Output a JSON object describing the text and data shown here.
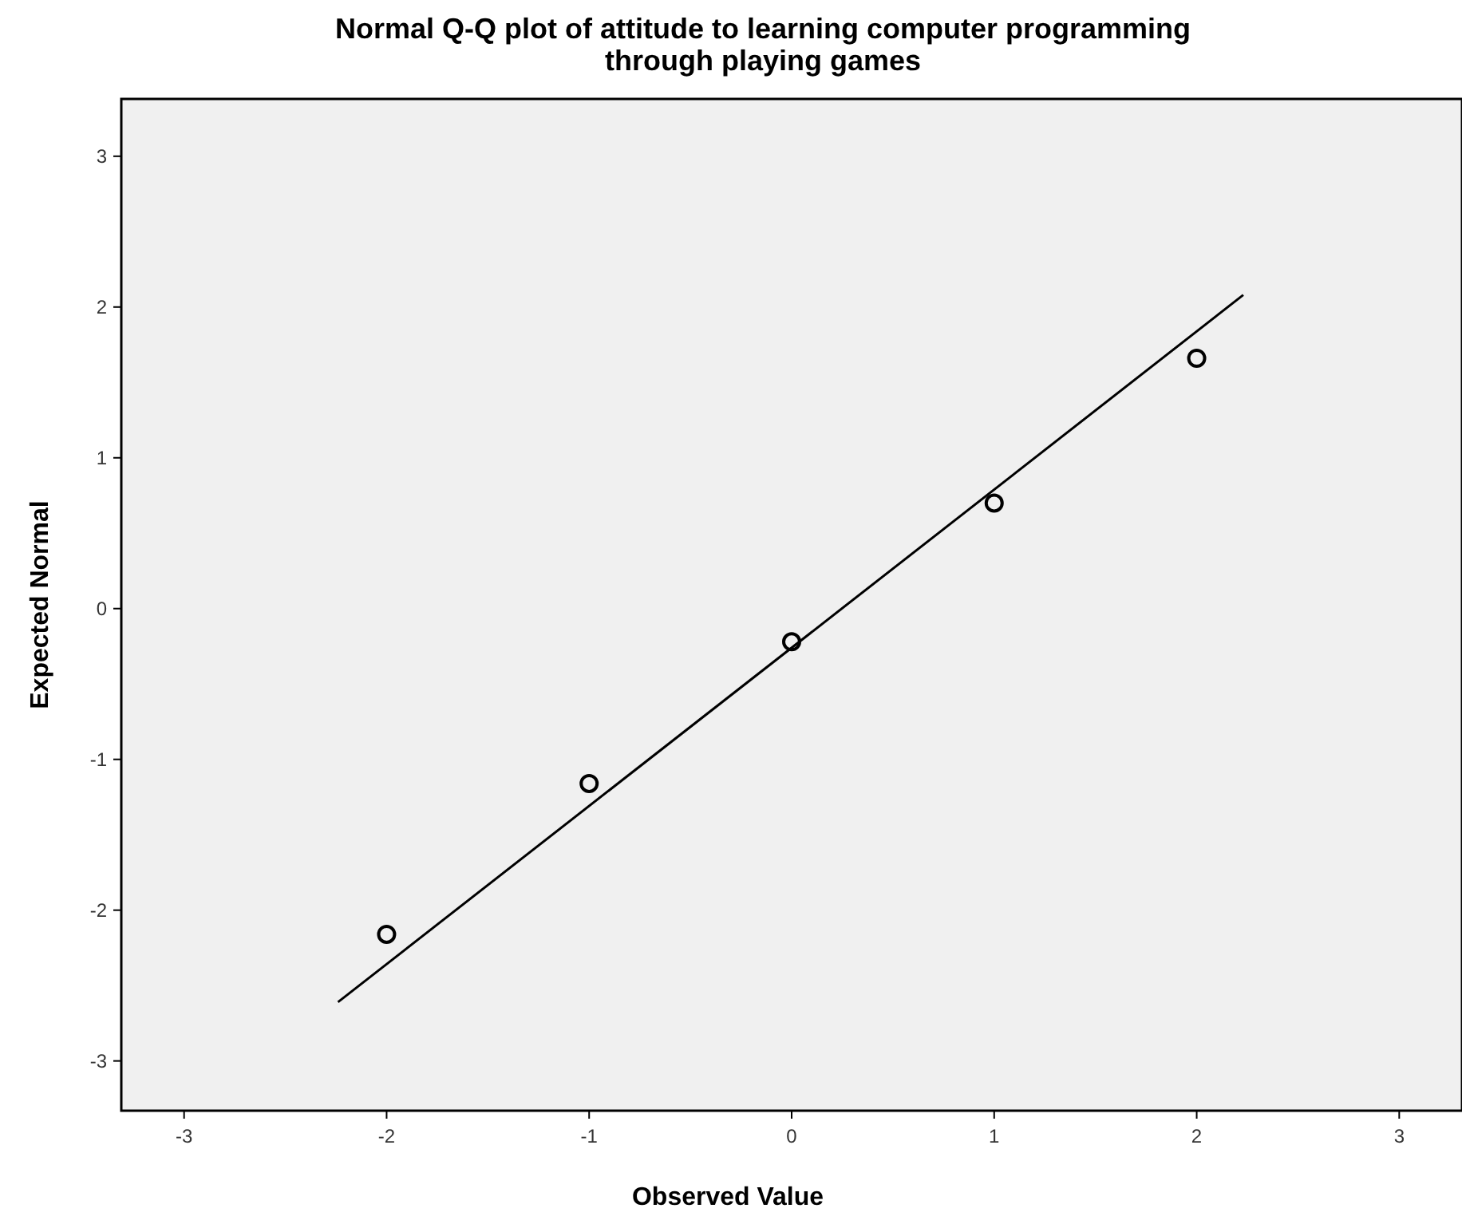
{
  "chart_data": {
    "type": "scatter",
    "title": "Normal Q-Q plot of attitude to learning computer programming through playing games",
    "xlabel": "Observed Value",
    "ylabel": "Expected Normal",
    "xlim": [
      -3.31,
      3.31
    ],
    "ylim": [
      -3.33,
      3.38
    ],
    "xticks": [
      -3,
      -2,
      -1,
      0,
      1,
      2,
      3
    ],
    "yticks": [
      -3,
      -2,
      -1,
      0,
      1,
      2,
      3
    ],
    "grid": false,
    "marker": "circle",
    "series": [
      {
        "color": "#000000",
        "x": [
          -2,
          -1,
          0,
          1,
          2
        ],
        "values": [
          -2.16,
          -1.16,
          -0.22,
          0.7,
          1.66
        ]
      },
      {
        "type": "line",
        "marker": "none",
        "color": "#000000",
        "x": [
          -2.24,
          2.23
        ],
        "values": [
          -2.61,
          2.08
        ]
      }
    ]
  }
}
